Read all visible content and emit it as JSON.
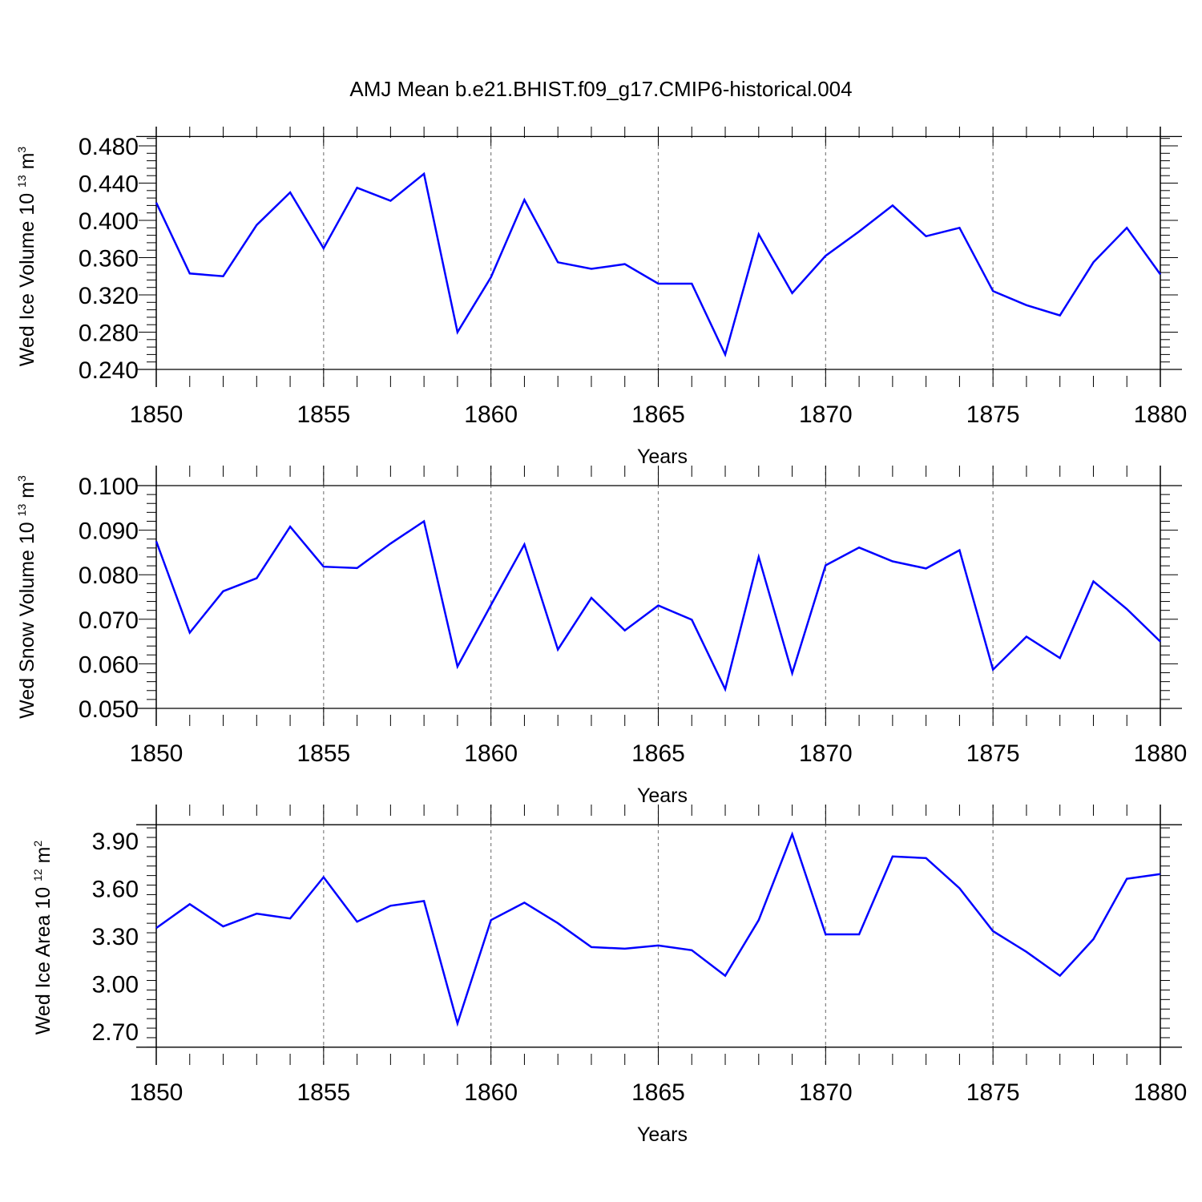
{
  "title": "AMJ Mean b.e21.BHIST.f09_g17.CMIP6-historical.004",
  "colors": {
    "series": "#0000ff",
    "axis": "#000000",
    "grid": "#808080"
  },
  "chart_data": [
    {
      "type": "line",
      "ylabel": {
        "text": "Wed Ice Volume 10",
        "exp": "13",
        "unit": " m",
        "unit_exp": "3"
      },
      "xlabel": "Years",
      "xlim": [
        1850,
        1880
      ],
      "ylim": [
        0.24,
        0.49
      ],
      "yticks": [
        0.24,
        0.28,
        0.32,
        0.36,
        0.4,
        0.44,
        0.48
      ],
      "ytick_labels": [
        "0.240",
        "0.280",
        "0.320",
        "0.360",
        "0.400",
        "0.440",
        "0.480"
      ],
      "xticks": [
        1850,
        1855,
        1860,
        1865,
        1870,
        1875,
        1880
      ],
      "xtick_labels": [
        "1850",
        "1855",
        "1860",
        "1865",
        "1870",
        "1875",
        "1880"
      ],
      "grid": "vertical dashed at major x ticks",
      "x": [
        1850,
        1851,
        1852,
        1853,
        1854,
        1855,
        1856,
        1857,
        1858,
        1859,
        1860,
        1861,
        1862,
        1863,
        1864,
        1865,
        1866,
        1867,
        1868,
        1869,
        1870,
        1871,
        1872,
        1873,
        1874,
        1875,
        1876,
        1877,
        1878,
        1879,
        1880
      ],
      "values": [
        0.419,
        0.343,
        0.34,
        0.395,
        0.43,
        0.37,
        0.435,
        0.421,
        0.45,
        0.28,
        0.339,
        0.422,
        0.355,
        0.348,
        0.353,
        0.332,
        0.332,
        0.256,
        0.385,
        0.322,
        0.362,
        0.388,
        0.416,
        0.383,
        0.392,
        0.324,
        0.309,
        0.298,
        0.355,
        0.392,
        0.342
      ]
    },
    {
      "type": "line",
      "ylabel": {
        "text": "Wed Snow Volume 10",
        "exp": "13",
        "unit": " m",
        "unit_exp": "3"
      },
      "xlabel": "Years",
      "xlim": [
        1850,
        1880
      ],
      "ylim": [
        0.05,
        0.1
      ],
      "yticks": [
        0.05,
        0.06,
        0.07,
        0.08,
        0.09,
        0.1
      ],
      "ytick_labels": [
        "0.050",
        "0.060",
        "0.070",
        "0.080",
        "0.090",
        "0.100"
      ],
      "xticks": [
        1850,
        1855,
        1860,
        1865,
        1870,
        1875,
        1880
      ],
      "xtick_labels": [
        "1850",
        "1855",
        "1860",
        "1865",
        "1870",
        "1875",
        "1880"
      ],
      "grid": "vertical dashed at major x ticks",
      "x": [
        1850,
        1851,
        1852,
        1853,
        1854,
        1855,
        1856,
        1857,
        1858,
        1859,
        1860,
        1861,
        1862,
        1863,
        1864,
        1865,
        1866,
        1867,
        1868,
        1869,
        1870,
        1871,
        1872,
        1873,
        1874,
        1875,
        1876,
        1877,
        1878,
        1879,
        1880
      ],
      "values": [
        0.0875,
        0.067,
        0.0763,
        0.0792,
        0.0908,
        0.0818,
        0.0815,
        0.087,
        0.092,
        0.0594,
        0.0732,
        0.0868,
        0.0632,
        0.0748,
        0.0675,
        0.0731,
        0.0699,
        0.0543,
        0.084,
        0.0579,
        0.0821,
        0.0861,
        0.083,
        0.0814,
        0.0855,
        0.0587,
        0.0661,
        0.0613,
        0.0785,
        0.0723,
        0.065
      ]
    },
    {
      "type": "line",
      "ylabel": {
        "text": "Wed Ice Area 10",
        "exp": "12",
        "unit": " m",
        "unit_exp": "2"
      },
      "xlabel": "Years",
      "xlim": [
        1850,
        1880
      ],
      "ylim": [
        2.6,
        4.0
      ],
      "yticks": [
        2.7,
        3.0,
        3.3,
        3.6,
        3.9
      ],
      "ytick_labels": [
        "2.70",
        "3.00",
        "3.30",
        "3.60",
        "3.90"
      ],
      "xticks": [
        1850,
        1855,
        1860,
        1865,
        1870,
        1875,
        1880
      ],
      "xtick_labels": [
        "1850",
        "1855",
        "1860",
        "1865",
        "1870",
        "1875",
        "1880"
      ],
      "grid": "vertical dashed at major x ticks",
      "x": [
        1850,
        1851,
        1852,
        1853,
        1854,
        1855,
        1856,
        1857,
        1858,
        1859,
        1860,
        1861,
        1862,
        1863,
        1864,
        1865,
        1866,
        1867,
        1868,
        1869,
        1870,
        1871,
        1872,
        1873,
        1874,
        1875,
        1876,
        1877,
        1878,
        1879,
        1880
      ],
      "values": [
        3.35,
        3.5,
        3.36,
        3.44,
        3.41,
        3.67,
        3.39,
        3.49,
        3.52,
        2.75,
        3.4,
        3.51,
        3.38,
        3.23,
        3.22,
        3.24,
        3.21,
        3.05,
        3.4,
        3.94,
        3.31,
        3.31,
        3.8,
        3.79,
        3.6,
        3.33,
        3.2,
        3.05,
        3.28,
        3.66,
        3.69
      ]
    }
  ]
}
